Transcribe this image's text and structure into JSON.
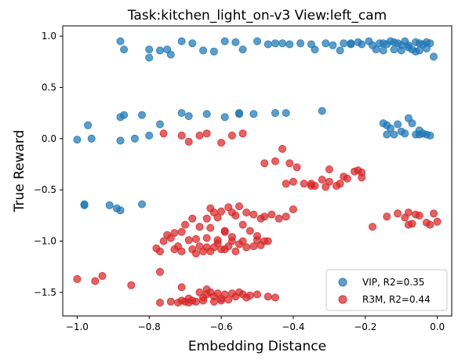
{
  "chart_data": {
    "type": "scatter",
    "title": "Task:kitchen_light_on-v3 View:left_cam",
    "xlabel": "Embedding Distance",
    "ylabel": "True Reward",
    "xlim": [
      -1.04,
      0.04
    ],
    "ylim": [
      -1.73,
      1.1
    ],
    "xticks": [
      -1.0,
      -0.8,
      -0.6,
      -0.4,
      -0.2,
      0.0
    ],
    "xtick_labels": [
      "−1.0",
      "−0.8",
      "−0.6",
      "−0.4",
      "−0.2",
      "0.0"
    ],
    "yticks": [
      1.0,
      0.5,
      0.0,
      -0.5,
      -1.0,
      -1.5
    ],
    "ytick_labels": [
      "1.0",
      "0.5",
      "0.0",
      "−0.5",
      "−1.0",
      "−1.5"
    ],
    "grid": false,
    "legend_position": "bottom-right",
    "series": [
      {
        "name": "VIP, R2=0.35",
        "color": "#1f77b4",
        "points": [
          [
            -0.88,
            0.95
          ],
          [
            -0.87,
            0.87
          ],
          [
            -0.8,
            0.87
          ],
          [
            -0.8,
            0.79
          ],
          [
            -0.77,
            0.86
          ],
          [
            -0.75,
            0.87
          ],
          [
            -0.74,
            0.82
          ],
          [
            -0.71,
            0.95
          ],
          [
            -0.68,
            0.93
          ],
          [
            -0.65,
            0.86
          ],
          [
            -0.62,
            0.85
          ],
          [
            -0.59,
            0.95
          ],
          [
            -0.56,
            0.94
          ],
          [
            -0.54,
            0.87
          ],
          [
            -0.5,
            0.95
          ],
          [
            -0.47,
            0.92
          ],
          [
            -0.45,
            0.93
          ],
          [
            -0.43,
            0.93
          ],
          [
            -0.41,
            0.92
          ],
          [
            -0.38,
            0.93
          ],
          [
            -0.35,
            0.92
          ],
          [
            -0.34,
            0.87
          ],
          [
            -0.31,
            0.93
          ],
          [
            -0.29,
            0.91
          ],
          [
            -0.27,
            0.86
          ],
          [
            -0.26,
            0.93
          ],
          [
            -0.24,
            0.93
          ],
          [
            -0.22,
            0.94
          ],
          [
            -0.21,
            0.92
          ],
          [
            -0.19,
            0.95
          ],
          [
            -0.18,
            0.91
          ],
          [
            -0.17,
            0.87
          ],
          [
            -0.16,
            0.93
          ],
          [
            -0.15,
            0.86
          ],
          [
            -0.14,
            0.92
          ],
          [
            -0.13,
            0.95
          ],
          [
            -0.12,
            0.87
          ],
          [
            -0.11,
            0.93
          ],
          [
            -0.1,
            0.91
          ],
          [
            -0.09,
            0.95
          ],
          [
            -0.08,
            0.89
          ],
          [
            -0.07,
            0.87
          ],
          [
            -0.06,
            0.94
          ],
          [
            -0.05,
            0.86
          ],
          [
            -0.04,
            0.92
          ],
          [
            -0.03,
            0.88
          ],
          [
            -0.02,
            0.93
          ],
          [
            -0.01,
            0.8
          ],
          [
            -0.15,
            0.93
          ],
          [
            -0.12,
            0.94
          ],
          [
            -0.08,
            0.91
          ],
          [
            -0.06,
            0.85
          ],
          [
            -0.05,
            0.93
          ],
          [
            -0.03,
            0.94
          ],
          [
            -0.1,
            0.86
          ],
          [
            -0.24,
            0.92
          ],
          [
            -1.0,
            -0.01
          ],
          [
            -0.97,
            0.13
          ],
          [
            -0.96,
            0.0
          ],
          [
            -0.88,
            -0.02
          ],
          [
            -0.88,
            0.21
          ],
          [
            -0.87,
            0.23
          ],
          [
            -0.84,
            0.0
          ],
          [
            -0.82,
            0.23
          ],
          [
            -0.8,
            0.03
          ],
          [
            -0.77,
            0.14
          ],
          [
            -0.71,
            0.25
          ],
          [
            -0.69,
            0.22
          ],
          [
            -0.64,
            0.24
          ],
          [
            -0.59,
            0.21
          ],
          [
            -0.55,
            0.24
          ],
          [
            -0.55,
            0.25
          ],
          [
            -0.51,
            0.24
          ],
          [
            -0.45,
            0.25
          ],
          [
            -0.42,
            0.25
          ],
          [
            -0.32,
            0.27
          ],
          [
            -0.15,
            0.15
          ],
          [
            -0.14,
            0.13
          ],
          [
            -0.13,
            0.1
          ],
          [
            -0.14,
            0.04
          ],
          [
            -0.12,
            0.04
          ],
          [
            -0.11,
            0.14
          ],
          [
            -0.1,
            0.07
          ],
          [
            -0.09,
            0.05
          ],
          [
            -0.08,
            0.2
          ],
          [
            -0.07,
            0.15
          ],
          [
            -0.06,
            0.04
          ],
          [
            -0.05,
            0.08
          ],
          [
            -0.04,
            0.05
          ],
          [
            -0.03,
            0.04
          ],
          [
            -0.02,
            0.03
          ],
          [
            -0.05,
            0.04
          ],
          [
            -0.98,
            -0.64
          ],
          [
            -0.98,
            -0.65
          ],
          [
            -0.91,
            -0.65
          ],
          [
            -0.89,
            -0.68
          ],
          [
            -0.88,
            -0.7
          ],
          [
            -0.82,
            -0.64
          ]
        ]
      },
      {
        "name": "R3M, R2=0.44",
        "color": "#d62728",
        "points": [
          [
            -0.76,
            0.05
          ],
          [
            -0.71,
            0.03
          ],
          [
            -0.69,
            -0.03
          ],
          [
            -0.66,
            0.03
          ],
          [
            -0.64,
            0.05
          ],
          [
            -0.6,
            -0.04
          ],
          [
            -0.57,
            0.03
          ],
          [
            -0.54,
            0.05
          ],
          [
            -0.48,
            -0.24
          ],
          [
            -0.45,
            -0.22
          ],
          [
            -0.43,
            -0.1
          ],
          [
            -0.41,
            -0.24
          ],
          [
            -0.39,
            -0.28
          ],
          [
            -0.37,
            -0.44
          ],
          [
            -0.35,
            -0.46
          ],
          [
            -0.34,
            -0.46
          ],
          [
            -0.32,
            -0.4
          ],
          [
            -0.3,
            -0.42
          ],
          [
            -0.28,
            -0.46
          ],
          [
            -0.27,
            -0.44
          ],
          [
            -0.25,
            -0.39
          ],
          [
            -0.23,
            -0.32
          ],
          [
            -0.22,
            -0.31
          ],
          [
            -0.21,
            -0.38
          ],
          [
            -0.3,
            -0.3
          ],
          [
            -0.26,
            -0.37
          ],
          [
            -0.21,
            -0.33
          ],
          [
            -0.4,
            -0.42
          ],
          [
            -0.35,
            -0.44
          ],
          [
            -0.31,
            -0.47
          ],
          [
            -0.42,
            -0.44
          ],
          [
            -0.71,
            -0.91
          ],
          [
            -0.7,
            -0.84
          ],
          [
            -0.68,
            -0.78
          ],
          [
            -0.67,
            -0.98
          ],
          [
            -0.66,
            -0.86
          ],
          [
            -0.64,
            -0.78
          ],
          [
            -0.63,
            -0.87
          ],
          [
            -0.62,
            -0.72
          ],
          [
            -0.6,
            -0.71
          ],
          [
            -0.59,
            -0.9
          ],
          [
            -0.58,
            -0.67
          ],
          [
            -0.57,
            -0.72
          ],
          [
            -0.55,
            -0.66
          ],
          [
            -0.53,
            -0.72
          ],
          [
            -0.51,
            -0.74
          ],
          [
            -0.49,
            -0.78
          ],
          [
            -0.48,
            -0.76
          ],
          [
            -0.46,
            -0.74
          ],
          [
            -0.44,
            -0.78
          ],
          [
            -0.42,
            -0.76
          ],
          [
            -0.4,
            -0.69
          ],
          [
            -0.63,
            -0.68
          ],
          [
            -0.61,
            -0.77
          ],
          [
            -0.56,
            -0.75
          ],
          [
            -0.54,
            -0.84
          ],
          [
            -0.52,
            -0.9
          ],
          [
            -0.5,
            -0.95
          ],
          [
            -0.48,
            -1.0
          ],
          [
            -0.59,
            -0.91
          ],
          [
            -0.57,
            -0.96
          ],
          [
            -0.61,
            -0.99
          ],
          [
            -0.64,
            -0.97
          ],
          [
            -0.69,
            -0.99
          ],
          [
            -0.68,
            -1.08
          ],
          [
            -0.66,
            -1.05
          ],
          [
            -0.65,
            -1.1
          ],
          [
            -0.64,
            -1.06
          ],
          [
            -0.63,
            -1.1
          ],
          [
            -0.62,
            -1.06
          ],
          [
            -0.61,
            -1.02
          ],
          [
            -0.6,
            -1.08
          ],
          [
            -0.59,
            -1.08
          ],
          [
            -0.58,
            -1.05
          ],
          [
            -0.57,
            -1.0
          ],
          [
            -0.56,
            -1.1
          ],
          [
            -0.55,
            -1.03
          ],
          [
            -0.54,
            -1.0
          ],
          [
            -0.53,
            -1.06
          ],
          [
            -0.51,
            -1.05
          ],
          [
            -0.5,
            -0.99
          ],
          [
            -0.49,
            -1.04
          ],
          [
            -0.47,
            -1.0
          ],
          [
            -0.72,
            -1.05
          ],
          [
            -0.73,
            -1.08
          ],
          [
            -0.74,
            -0.97
          ],
          [
            -0.76,
            -1.0
          ],
          [
            -0.77,
            -1.1
          ],
          [
            -0.78,
            -1.07
          ],
          [
            -0.75,
            -0.94
          ],
          [
            -0.73,
            -0.92
          ],
          [
            -0.67,
            -1.12
          ],
          [
            -0.71,
            -1.1
          ],
          [
            -0.77,
            -1.3
          ],
          [
            -1.0,
            -1.37
          ],
          [
            -0.95,
            -1.39
          ],
          [
            -0.93,
            -1.34
          ],
          [
            -0.85,
            -1.43
          ],
          [
            -0.71,
            -1.45
          ],
          [
            -0.77,
            -1.6
          ],
          [
            -0.74,
            -1.59
          ],
          [
            -0.72,
            -1.6
          ],
          [
            -0.71,
            -1.58
          ],
          [
            -0.7,
            -1.59
          ],
          [
            -0.69,
            -1.6
          ],
          [
            -0.68,
            -1.58
          ],
          [
            -0.67,
            -1.59
          ],
          [
            -0.66,
            -1.5
          ],
          [
            -0.65,
            -1.55
          ],
          [
            -0.64,
            -1.52
          ],
          [
            -0.63,
            -1.5
          ],
          [
            -0.62,
            -1.54
          ],
          [
            -0.61,
            -1.51
          ],
          [
            -0.6,
            -1.56
          ],
          [
            -0.59,
            -1.52
          ],
          [
            -0.58,
            -1.57
          ],
          [
            -0.57,
            -1.51
          ],
          [
            -0.56,
            -1.54
          ],
          [
            -0.55,
            -1.5
          ],
          [
            -0.54,
            -1.52
          ],
          [
            -0.53,
            -1.55
          ],
          [
            -0.52,
            -1.53
          ],
          [
            -0.5,
            -1.52
          ],
          [
            -0.47,
            -1.54
          ],
          [
            -0.45,
            -1.55
          ],
          [
            -0.65,
            -1.58
          ],
          [
            -0.62,
            -1.59
          ],
          [
            -0.6,
            -1.58
          ],
          [
            -0.64,
            -1.47
          ],
          [
            -0.69,
            -1.56
          ],
          [
            -0.18,
            -0.86
          ],
          [
            -0.14,
            -0.76
          ],
          [
            -0.11,
            -0.73
          ],
          [
            -0.09,
            -0.77
          ],
          [
            -0.08,
            -0.84
          ],
          [
            -0.07,
            -0.83
          ],
          [
            -0.06,
            -0.74
          ],
          [
            -0.05,
            -0.75
          ],
          [
            -0.03,
            -0.82
          ],
          [
            -0.02,
            -0.84
          ],
          [
            -0.01,
            -0.73
          ],
          [
            0.0,
            -0.81
          ],
          [
            -0.08,
            -0.72
          ]
        ]
      }
    ]
  }
}
